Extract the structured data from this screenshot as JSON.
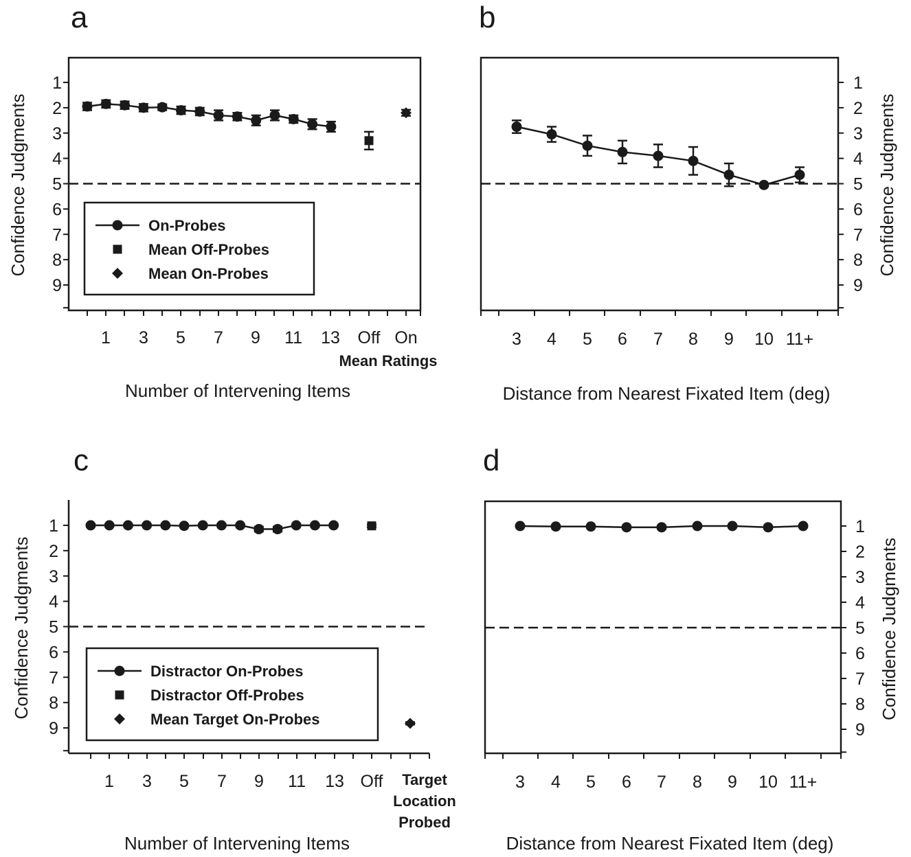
{
  "chart_data": [
    {
      "panel": "a",
      "type": "line",
      "xlabel": "Number of Intervening Items",
      "ylabel": "Confidence Judgments",
      "ylim": [
        1,
        9
      ],
      "y_inverted": true,
      "y_ticks": [
        "1",
        "2",
        "3",
        "4",
        "5",
        "6",
        "7",
        "8",
        "9"
      ],
      "x_tick_labels": [
        "1",
        "3",
        "5",
        "7",
        "9",
        "11",
        "13",
        "Off",
        "On"
      ],
      "x_group_label": "Mean Ratings",
      "reference_line": 5,
      "legend": [
        "On-Probes",
        "Mean Off-Probes",
        "Mean On-Probes"
      ],
      "legend_position": "bottom-left",
      "series": [
        {
          "name": "On-Probes",
          "marker": "circle",
          "x": [
            0,
            1,
            2,
            3,
            4,
            5,
            6,
            7,
            8,
            9,
            10,
            11,
            12,
            13
          ],
          "values": [
            1.95,
            1.85,
            1.9,
            2.0,
            1.98,
            2.1,
            2.15,
            2.3,
            2.35,
            2.5,
            2.3,
            2.45,
            2.65,
            2.75
          ],
          "errors": [
            0.15,
            0.15,
            0.15,
            0.15,
            0.12,
            0.15,
            0.15,
            0.2,
            0.15,
            0.2,
            0.2,
            0.15,
            0.2,
            0.2
          ]
        },
        {
          "name": "Mean Off-Probes",
          "marker": "square",
          "x": [
            "Off"
          ],
          "values": [
            3.3
          ],
          "errors": [
            0.35
          ]
        },
        {
          "name": "Mean On-Probes",
          "marker": "diamond",
          "x": [
            "On"
          ],
          "values": [
            2.2
          ],
          "errors": [
            0.12
          ]
        }
      ]
    },
    {
      "panel": "b",
      "type": "line",
      "xlabel": "Distance from Nearest Fixated Item (deg)",
      "ylabel": "Confidence Judgments",
      "ylim": [
        1,
        9
      ],
      "y_inverted": true,
      "y_ticks": [
        "1",
        "2",
        "3",
        "4",
        "5",
        "6",
        "7",
        "8",
        "9"
      ],
      "categories": [
        "3",
        "4",
        "5",
        "6",
        "7",
        "8",
        "9",
        "10",
        "11+"
      ],
      "reference_line": 5,
      "series": [
        {
          "name": "On-Probes",
          "marker": "circle",
          "values": [
            2.75,
            3.05,
            3.5,
            3.75,
            3.9,
            4.1,
            4.65,
            5.05,
            4.65
          ],
          "errors": [
            0.25,
            0.3,
            0.4,
            0.45,
            0.45,
            0.55,
            0.45,
            0.0,
            0.3
          ]
        }
      ]
    },
    {
      "panel": "c",
      "type": "line",
      "xlabel": "Number of Intervening Items",
      "ylabel": "Confidence Judgments",
      "ylim": [
        1,
        9
      ],
      "y_inverted": true,
      "y_ticks": [
        "1",
        "2",
        "3",
        "4",
        "5",
        "6",
        "7",
        "8",
        "9"
      ],
      "x_tick_labels": [
        "1",
        "3",
        "5",
        "7",
        "9",
        "11",
        "13",
        "Off"
      ],
      "x_group_label": [
        "Target",
        "Location",
        "Probed"
      ],
      "reference_line": 5,
      "legend": [
        "Distractor On-Probes",
        "Distractor Off-Probes",
        "Mean Target On-Probes"
      ],
      "legend_position": "bottom-left",
      "series": [
        {
          "name": "Distractor On-Probes",
          "marker": "circle",
          "x": [
            0,
            1,
            2,
            3,
            4,
            5,
            6,
            7,
            8,
            9,
            10,
            11,
            12,
            13
          ],
          "values": [
            1.0,
            1.0,
            1.0,
            1.0,
            1.0,
            1.02,
            1.0,
            1.0,
            1.0,
            1.15,
            1.15,
            1.0,
            1.0,
            1.0
          ],
          "errors": [
            0,
            0,
            0,
            0,
            0,
            0,
            0,
            0,
            0,
            0.1,
            0.1,
            0,
            0,
            0
          ]
        },
        {
          "name": "Distractor Off-Probes",
          "marker": "square",
          "x": [
            "Off"
          ],
          "values": [
            1.02
          ],
          "errors": [
            0.05
          ]
        },
        {
          "name": "Mean Target On-Probes",
          "marker": "diamond",
          "x": [
            "Target Location Probed"
          ],
          "values": [
            8.82
          ],
          "errors": [
            0.05
          ]
        }
      ]
    },
    {
      "panel": "d",
      "type": "line",
      "xlabel": "Distance from Nearest Fixated Item (deg)",
      "ylabel": "Confidence Judgments",
      "ylim": [
        1,
        9
      ],
      "y_inverted": true,
      "y_ticks": [
        "1",
        "2",
        "3",
        "4",
        "5",
        "6",
        "7",
        "8",
        "9"
      ],
      "categories": [
        "3",
        "4",
        "5",
        "6",
        "7",
        "8",
        "9",
        "10",
        "11+"
      ],
      "reference_line": 5,
      "series": [
        {
          "name": "On-Probes",
          "marker": "circle",
          "values": [
            1.0,
            1.02,
            1.02,
            1.05,
            1.05,
            1.0,
            1.0,
            1.05,
            1.0
          ],
          "errors": [
            0,
            0,
            0,
            0,
            0,
            0,
            0,
            0,
            0
          ]
        }
      ]
    }
  ]
}
